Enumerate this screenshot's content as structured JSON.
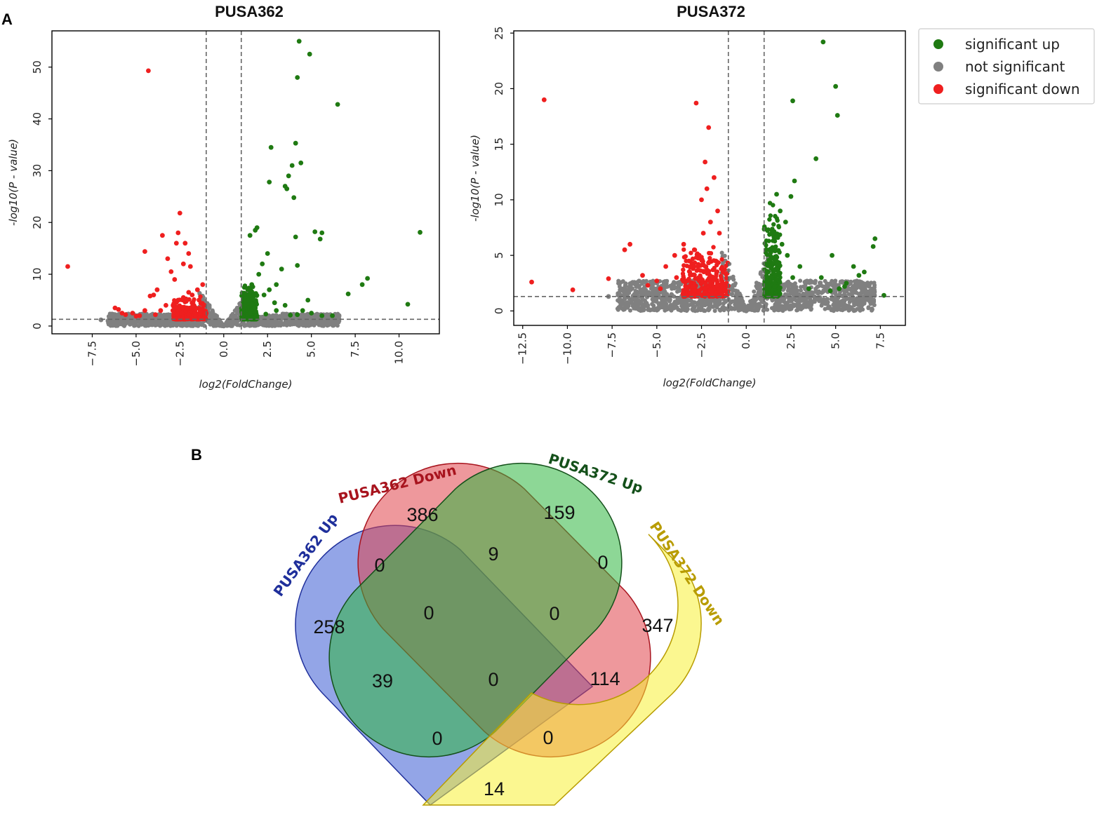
{
  "panels": {
    "a": "A",
    "b": "B"
  },
  "colors": {
    "up": "#1f7a12",
    "ns": "#808080",
    "down": "#ef1f1f",
    "venn_blue": "#3b5bd3",
    "venn_red": "#e0434b",
    "venn_green": "#2fb63f",
    "venn_yellow": "#f7f135"
  },
  "legend": {
    "items": [
      {
        "label": "significant up",
        "color": "#1f7a12"
      },
      {
        "label": "not significant",
        "color": "#808080"
      },
      {
        "label": "significant down",
        "color": "#ef1f1f"
      }
    ]
  },
  "chart_data": [
    {
      "type": "scatter",
      "title": "PUSA362",
      "xlabel": "log2(FoldChange)",
      "ylabel": "-log10(P - value)",
      "xlim": [
        -9.8,
        12.3
      ],
      "ylim": [
        -1.5,
        57
      ],
      "xticks": [
        -7.5,
        -5.0,
        -2.5,
        0.0,
        2.5,
        5.0,
        7.5,
        10.0
      ],
      "yticks": [
        0,
        10,
        20,
        30,
        40,
        50
      ],
      "xtick_labels": [
        "−7.5",
        "−5.0",
        "−2.5",
        "0.0",
        "2.5",
        "5.0",
        "7.5",
        "10.0"
      ],
      "ytick_labels": [
        "0",
        "10",
        "20",
        "30",
        "40",
        "50"
      ],
      "fc_thresholds": [
        -1,
        1
      ],
      "p_threshold": 1.3,
      "series": [
        {
          "name": "significant up",
          "points": [
            [
              4.3,
              55
            ],
            [
              4.9,
              52.5
            ],
            [
              4.2,
              48
            ],
            [
              6.5,
              42.8
            ],
            [
              4.1,
              35.3
            ],
            [
              2.7,
              34.5
            ],
            [
              4.4,
              31.5
            ],
            [
              3.9,
              31
            ],
            [
              3.7,
              29
            ],
            [
              2.6,
              27.8
            ],
            [
              3.5,
              27
            ],
            [
              3.6,
              26.5
            ],
            [
              4.0,
              24.8
            ],
            [
              1.9,
              19
            ],
            [
              1.8,
              18.5
            ],
            [
              1.5,
              17.5
            ],
            [
              5.2,
              18.2
            ],
            [
              5.6,
              18
            ],
            [
              5.5,
              16.8
            ],
            [
              4.1,
              17.2
            ],
            [
              11.2,
              18.1
            ],
            [
              4.2,
              11.7
            ],
            [
              8.2,
              9.2
            ],
            [
              7.9,
              8
            ],
            [
              7.1,
              6.2
            ],
            [
              4.8,
              5
            ],
            [
              10.5,
              4.2
            ],
            [
              3.3,
              11
            ],
            [
              2.5,
              14
            ],
            [
              2.2,
              12
            ],
            [
              3.0,
              8
            ],
            [
              2.0,
              10
            ],
            [
              1.6,
              8
            ],
            [
              2.3,
              6
            ],
            [
              1.4,
              5
            ],
            [
              2.6,
              7
            ],
            [
              3.5,
              4
            ],
            [
              3.0,
              3
            ],
            [
              1.2,
              4
            ],
            [
              1.8,
              3.5
            ],
            [
              2.9,
              4.5
            ],
            [
              4.5,
              3
            ],
            [
              5.0,
              2.5
            ],
            [
              6.2,
              2
            ],
            [
              3.8,
              2.1
            ],
            [
              1.5,
              2.5
            ],
            [
              1.1,
              3
            ],
            [
              2.4,
              2.3
            ],
            [
              5.6,
              2
            ],
            [
              4.2,
              2.2
            ]
          ]
        },
        {
          "name": "significant down",
          "points": [
            [
              -4.3,
              49.3
            ],
            [
              -2.5,
              21.8
            ],
            [
              -8.9,
              11.5
            ],
            [
              -2.6,
              18
            ],
            [
              -3.5,
              17.5
            ],
            [
              -2.7,
              16
            ],
            [
              -2.2,
              16
            ],
            [
              -4.5,
              14.4
            ],
            [
              -2.0,
              14
            ],
            [
              -3.2,
              13
            ],
            [
              -2.3,
              12
            ],
            [
              -1.9,
              11.5
            ],
            [
              -3.0,
              10.5
            ],
            [
              -2.8,
              9
            ],
            [
              -3.8,
              7
            ],
            [
              -4.0,
              6
            ],
            [
              -4.2,
              5.8
            ],
            [
              -1.2,
              8
            ],
            [
              -1.5,
              7
            ],
            [
              -2.0,
              6.5
            ],
            [
              -1.8,
              6
            ],
            [
              -2.3,
              5.5
            ],
            [
              -1.4,
              5
            ],
            [
              -2.6,
              5
            ],
            [
              -3.3,
              4
            ],
            [
              -1.1,
              4
            ],
            [
              -1.7,
              4
            ],
            [
              -2.1,
              3.5
            ],
            [
              -2.9,
              3
            ],
            [
              -4.5,
              3
            ],
            [
              -5.2,
              2.5
            ],
            [
              -5.8,
              2.5
            ],
            [
              -6.0,
              3.2
            ],
            [
              -5.6,
              2.2
            ],
            [
              -6.2,
              3.5
            ],
            [
              -3.6,
              3
            ],
            [
              -1.3,
              3
            ],
            [
              -1.0,
              2.5
            ],
            [
              -2.4,
              2.5
            ],
            [
              -3.9,
              2.2
            ],
            [
              -4.8,
              2
            ],
            [
              -5.0,
              1.9
            ],
            [
              -1.6,
              2
            ],
            [
              -2.0,
              2.2
            ]
          ]
        },
        {
          "name": "not significant",
          "points": [
            [
              -7,
              1.2
            ],
            [
              -6.6,
              1
            ],
            [
              -6.3,
              1
            ],
            [
              5.6,
              1.1
            ],
            [
              6.2,
              1.1
            ],
            [
              6.5,
              1
            ],
            [
              -0.5,
              0.5
            ],
            [
              0,
              0
            ],
            [
              0.5,
              0.5
            ],
            [
              -0.8,
              1
            ],
            [
              0.8,
              1
            ]
          ]
        }
      ]
    },
    {
      "type": "scatter",
      "title": "PUSA372",
      "xlabel": "log2(FoldChange)",
      "ylabel": "-log10(P - value)",
      "xlim": [
        -13.0,
        8.9
      ],
      "ylim": [
        -1.3,
        25.2
      ],
      "xticks": [
        -12.5,
        -10.0,
        -7.5,
        -5.0,
        -2.5,
        0.0,
        2.5,
        5.0,
        7.5
      ],
      "yticks": [
        0,
        5,
        10,
        15,
        20,
        25
      ],
      "xtick_labels": [
        "−12.5",
        "−10.0",
        "−7.5",
        "−5.0",
        "−2.5",
        "0.0",
        "2.5",
        "5.0",
        "7.5"
      ],
      "ytick_labels": [
        "0",
        "5",
        "10",
        "15",
        "20",
        "25"
      ],
      "fc_thresholds": [
        -1,
        1
      ],
      "p_threshold": 1.3,
      "series": [
        {
          "name": "significant up",
          "points": [
            [
              4.3,
              24.2
            ],
            [
              5.0,
              20.2
            ],
            [
              5.1,
              17.6
            ],
            [
              2.6,
              18.9
            ],
            [
              3.9,
              13.7
            ],
            [
              2.7,
              11.7
            ],
            [
              2.5,
              10.3
            ],
            [
              1.7,
              10.5
            ],
            [
              1.9,
              9
            ],
            [
              2.2,
              8
            ],
            [
              7.2,
              6.5
            ],
            [
              7.1,
              5.8
            ],
            [
              4.8,
              5
            ],
            [
              6.0,
              4
            ],
            [
              1.5,
              7
            ],
            [
              2.0,
              6
            ],
            [
              2.3,
              5
            ],
            [
              1.3,
              5.5
            ],
            [
              3.0,
              4
            ],
            [
              1.8,
              3.5
            ],
            [
              2.6,
              3
            ],
            [
              4.2,
              3
            ],
            [
              5.6,
              2.5
            ],
            [
              6.3,
              3.2
            ],
            [
              1.2,
              2.5
            ],
            [
              3.5,
              2
            ],
            [
              4.7,
              1.8
            ],
            [
              5.2,
              2
            ],
            [
              5.5,
              2.2
            ],
            [
              6.6,
              3.5
            ],
            [
              7.7,
              1.4
            ]
          ]
        },
        {
          "name": "significant down",
          "points": [
            [
              -11.3,
              19
            ],
            [
              -2.8,
              18.7
            ],
            [
              -2.1,
              16.5
            ],
            [
              -2.3,
              13.4
            ],
            [
              -1.8,
              12
            ],
            [
              -2.2,
              11
            ],
            [
              -2.5,
              10
            ],
            [
              -1.6,
              9
            ],
            [
              -2.0,
              8
            ],
            [
              -2.4,
              7
            ],
            [
              -1.5,
              7
            ],
            [
              -3.5,
              6
            ],
            [
              -2.9,
              5.5
            ],
            [
              -4.0,
              5
            ],
            [
              -6.5,
              6
            ],
            [
              -6.8,
              5.5
            ],
            [
              -3.2,
              4.5
            ],
            [
              -1.7,
              4.5
            ],
            [
              -4.5,
              4
            ],
            [
              -2.7,
              4
            ],
            [
              -3.9,
              3
            ],
            [
              -5.0,
              2.7
            ],
            [
              -5.5,
              2.3
            ],
            [
              -2.0,
              3
            ],
            [
              -4.8,
              2
            ],
            [
              -1.3,
              3.5
            ],
            [
              -12.0,
              2.6
            ],
            [
              -9.7,
              1.9
            ],
            [
              -7.7,
              2.9
            ],
            [
              -5.8,
              3.2
            ],
            [
              -1.1,
              2.5
            ],
            [
              -3.0,
              2.2
            ],
            [
              -2.3,
              2
            ]
          ]
        },
        {
          "name": "not significant",
          "points": [
            [
              -7.7,
              1.3
            ],
            [
              -6.8,
              1.1
            ],
            [
              -6.4,
              1
            ],
            [
              -6.0,
              0.9
            ],
            [
              6.0,
              0.9
            ],
            [
              6.5,
              1
            ],
            [
              7.0,
              1.1
            ],
            [
              -0.3,
              0.4
            ],
            [
              0.3,
              0.3
            ],
            [
              0,
              0
            ]
          ]
        }
      ]
    },
    {
      "type": "venn",
      "sets": [
        "PUSA362 Up",
        "PUSA362 Down",
        "PUSA372 Up",
        "PUSA372 Down"
      ],
      "set_colors": [
        "#1f2f9b",
        "#a8141e",
        "#14501a",
        "#b89c00"
      ],
      "counts": [
        258,
        386,
        159,
        347,
        0,
        9,
        0,
        39,
        0,
        0,
        0,
        114,
        0,
        0,
        14
      ]
    }
  ]
}
